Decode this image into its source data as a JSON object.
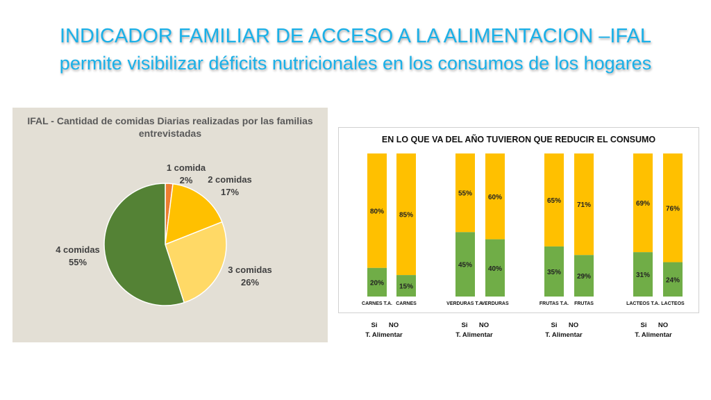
{
  "header": {
    "title_line1": "INDICADOR FAMILIAR DE ACCESO A LA ALIMENTACION –IFAL",
    "title_line2": "permite visibilizar déficits nutricionales en los consumos de los hogares"
  },
  "colors": {
    "title": "#1ab0e8",
    "pie_panel_bg": "#e3dfd5",
    "slice_1": "#ed7d31",
    "slice_2": "#ffc000",
    "slice_3": "#ffd966",
    "slice_4": "#548235",
    "bar_reduced": "#70ad47",
    "bar_not_reduced": "#ffc000"
  },
  "chart_data": [
    {
      "type": "pie",
      "title": "IFAL - Cantidad de comidas Diarias realizadas por las familias entrevistadas",
      "slices": [
        {
          "label": "1 comida",
          "value": 2,
          "value_label": "2%"
        },
        {
          "label": "2 comidas",
          "value": 17,
          "value_label": "17%"
        },
        {
          "label": "3 comidas",
          "value": 26,
          "value_label": "26%"
        },
        {
          "label": "4 comidas",
          "value": 55,
          "value_label": "55%"
        }
      ]
    },
    {
      "type": "bar",
      "stacked": true,
      "title": "EN LO QUE VA DEL AÑO TUVIERON QUE REDUCIR EL CONSUMO",
      "categories": [
        "CARNES T.A.",
        "CARNES",
        "VERDURAS T.A.",
        "VERDURAS",
        "FRUTAS T.A.",
        "FRUTAS",
        "LACTEOS T.A.",
        "LACTEOS"
      ],
      "series": [
        {
          "values": [
            20,
            15,
            45,
            40,
            35,
            29,
            31,
            24
          ]
        },
        {
          "values": [
            80,
            85,
            55,
            60,
            65,
            71,
            69,
            76
          ]
        }
      ],
      "ylim": [
        0,
        100
      ],
      "group_legends": [
        {
          "si": "Si",
          "no": "NO",
          "caption": "T. Alimentar"
        },
        {
          "si": "Si",
          "no": "NO",
          "caption": "T. Alimentar"
        },
        {
          "si": "Si",
          "no": "NO",
          "caption": "T. Alimentar"
        },
        {
          "si": "Si",
          "no": "NO",
          "caption": "T. Alimentar"
        }
      ]
    }
  ]
}
